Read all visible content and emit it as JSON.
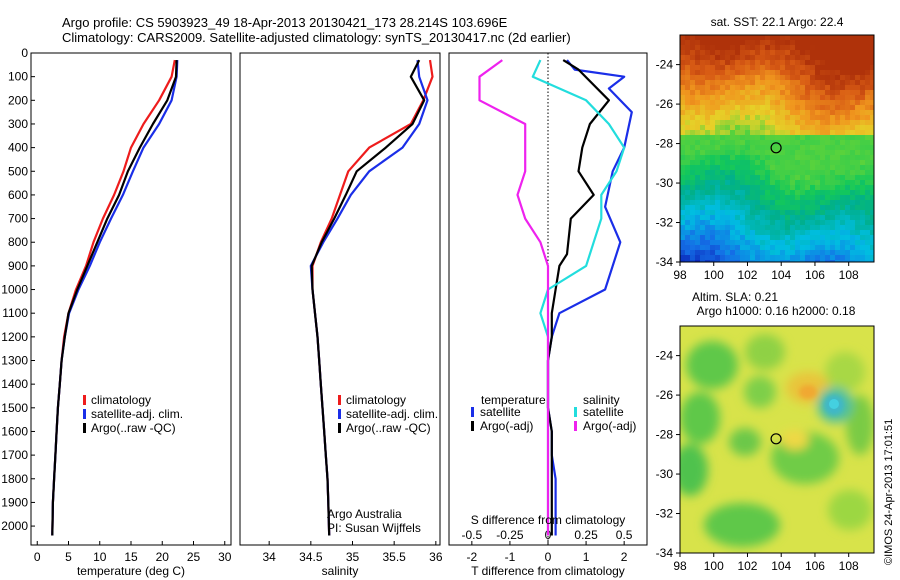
{
  "header": {
    "line1": "Argo profile: CS 5903923_49 18-Apr-2013 20130421_173 28.214S 103.696E",
    "line2": "Climatology: CARS2009. Satellite-adjusted climatology: synTS_20130417.nc (2d earlier)"
  },
  "colors": {
    "climatology": "#ee1c1c",
    "satellite_adj": "#1a2ee8",
    "argo": "#000000",
    "salinity_satellite": "#22dddd",
    "salinity_argo": "#ee22ee"
  },
  "chart_data": [
    {
      "type": "line",
      "panel": "temperature",
      "xlabel": "temperature (deg C)",
      "xlim": [
        -1,
        31
      ],
      "xticks": [
        0,
        5,
        10,
        15,
        20,
        25,
        30
      ],
      "ylim": [
        0,
        2080
      ],
      "yticks": [
        0,
        100,
        200,
        300,
        400,
        500,
        600,
        700,
        800,
        900,
        1000,
        1100,
        1200,
        1300,
        1400,
        1500,
        1600,
        1700,
        1800,
        1900,
        2000
      ],
      "y_inverted": true,
      "legend": [
        "climatology",
        "satellite-adj. clim.",
        "Argo(..raw -QC)"
      ],
      "series": [
        {
          "name": "climatology",
          "color": "#ee1c1c",
          "x": [
            22.0,
            21.5,
            19.5,
            17.0,
            15.0,
            13.8,
            12.3,
            10.5,
            9.0,
            7.8,
            6.2,
            5.0,
            4.3,
            3.9,
            3.6,
            3.3,
            3.1,
            2.9,
            2.7,
            2.5,
            2.4
          ],
          "y": [
            30,
            100,
            200,
            300,
            400,
            500,
            600,
            700,
            800,
            900,
            1000,
            1100,
            1200,
            1300,
            1400,
            1500,
            1600,
            1700,
            1800,
            1900,
            2040
          ]
        },
        {
          "name": "satellite-adj. clim.",
          "color": "#1a2ee8",
          "x": [
            22.4,
            22.3,
            21.5,
            19.5,
            17.0,
            15.3,
            13.7,
            11.8,
            10.0,
            8.4,
            6.6,
            5.1,
            4.4,
            3.9,
            3.6,
            3.3,
            3.1,
            2.9,
            2.7,
            2.5,
            2.4
          ],
          "y": [
            30,
            100,
            200,
            300,
            400,
            500,
            600,
            700,
            800,
            900,
            1000,
            1100,
            1200,
            1300,
            1400,
            1500,
            1600,
            1700,
            1800,
            1900,
            2040
          ]
        },
        {
          "name": "Argo(..raw -QC)",
          "color": "#000000",
          "x": [
            22.3,
            22.2,
            20.8,
            18.5,
            16.4,
            14.5,
            13.1,
            11.2,
            9.6,
            8.0,
            6.4,
            5.0,
            4.4,
            3.9,
            3.6,
            3.3,
            3.1,
            2.9,
            2.7,
            2.5,
            2.4
          ],
          "y": [
            30,
            100,
            200,
            300,
            400,
            500,
            600,
            700,
            800,
            900,
            1000,
            1100,
            1200,
            1300,
            1400,
            1500,
            1600,
            1700,
            1800,
            1900,
            2040
          ]
        }
      ]
    },
    {
      "type": "line",
      "panel": "salinity",
      "xlabel": "salinity",
      "xlim": [
        33.65,
        36.05
      ],
      "xticks": [
        34,
        34.5,
        35,
        35.5,
        36
      ],
      "ylim": [
        0,
        2080
      ],
      "y_inverted": true,
      "legend": [
        "climatology",
        "satellite-adj. clim.",
        "Argo(..raw -QC)"
      ],
      "annotation": [
        "Argo Australia",
        "PI: Susan Wijffels"
      ],
      "series": [
        {
          "name": "climatology",
          "color": "#ee1c1c",
          "x": [
            35.93,
            35.96,
            35.85,
            35.7,
            35.2,
            34.95,
            34.85,
            34.75,
            34.62,
            34.52,
            34.52,
            34.55,
            34.58,
            34.6,
            34.62,
            34.64,
            34.66,
            34.68,
            34.7,
            34.71,
            34.72
          ],
          "y": [
            30,
            100,
            200,
            300,
            400,
            500,
            600,
            700,
            800,
            900,
            1000,
            1100,
            1200,
            1300,
            1400,
            1500,
            1600,
            1700,
            1800,
            1900,
            2040
          ]
        },
        {
          "name": "satellite-adj. clim.",
          "color": "#1a2ee8",
          "x": [
            35.78,
            35.8,
            35.9,
            35.8,
            35.6,
            35.2,
            34.98,
            34.82,
            34.65,
            34.5,
            34.52,
            34.55,
            34.58,
            34.6,
            34.62,
            34.64,
            34.66,
            34.68,
            34.7,
            34.71,
            34.72
          ],
          "y": [
            30,
            100,
            200,
            300,
            400,
            500,
            600,
            700,
            800,
            900,
            1000,
            1100,
            1200,
            1300,
            1400,
            1500,
            1600,
            1700,
            1800,
            1900,
            2040
          ]
        },
        {
          "name": "Argo(..raw -QC)",
          "color": "#000000",
          "x": [
            35.8,
            35.7,
            35.86,
            35.72,
            35.4,
            35.05,
            34.92,
            34.78,
            34.63,
            34.51,
            34.52,
            34.55,
            34.58,
            34.6,
            34.62,
            34.64,
            34.66,
            34.68,
            34.7,
            34.71,
            34.72
          ],
          "y": [
            30,
            100,
            200,
            300,
            400,
            500,
            600,
            700,
            800,
            900,
            1000,
            1100,
            1200,
            1300,
            1400,
            1500,
            1600,
            1700,
            1800,
            1900,
            2040
          ]
        }
      ]
    },
    {
      "type": "line",
      "panel": "difference",
      "xlabel": "T difference from climatology",
      "xlabel_top": "S difference from climatology",
      "xlim": [
        -2.6,
        2.6
      ],
      "xticks": [
        -2,
        -1,
        0,
        1,
        2
      ],
      "xticks_salinity": [
        -0.5,
        -0.25,
        0,
        0.25,
        0.5
      ],
      "ylim": [
        0,
        2080
      ],
      "y_inverted": true,
      "legend_temperature_title": "temperature",
      "legend_salinity_title": "salinity",
      "legend_temperature": [
        "satellite",
        "Argo(-adj)"
      ],
      "legend_salinity": [
        "satellite",
        "Argo(-adj)"
      ],
      "series": [
        {
          "name": "temperature satellite",
          "color": "#1a2ee8",
          "x": [
            0.5,
            0.7,
            2.0,
            1.6,
            2.2,
            2.0,
            1.7,
            1.5,
            1.9,
            1.8,
            1.5,
            0.3,
            0.1,
            0.0,
            0.0,
            0.0,
            0.1,
            0.1,
            0.2,
            0.2,
            0.2
          ],
          "y": [
            30,
            70,
            100,
            150,
            250,
            400,
            500,
            650,
            800,
            850,
            1000,
            1100,
            1200,
            1300,
            1400,
            1500,
            1600,
            1700,
            1800,
            1900,
            2040
          ]
        },
        {
          "name": "temperature Argo(-adj)",
          "color": "#000000",
          "x": [
            0.4,
            0.8,
            1.6,
            1.1,
            0.9,
            0.8,
            1.2,
            0.6,
            0.5,
            0.3,
            0.2,
            0.1,
            0.1,
            0.0,
            0.0,
            0.0,
            0.1,
            0.1,
            0.1,
            0.1,
            0.1
          ],
          "y": [
            30,
            70,
            200,
            300,
            400,
            500,
            600,
            700,
            850,
            900,
            1000,
            1100,
            1200,
            1300,
            1400,
            1500,
            1600,
            1700,
            1800,
            1900,
            2040
          ]
        },
        {
          "name": "salinity satellite",
          "color": "#22dddd",
          "x": [
            -0.05,
            -0.1,
            0.25,
            0.4,
            0.5,
            0.45,
            0.35,
            0.35,
            0.3,
            0.25,
            0.0,
            -0.05,
            0.0,
            0.0,
            0.0,
            0.0,
            0.0,
            0.0,
            0.0,
            0.0,
            0.0
          ],
          "y": [
            30,
            100,
            200,
            300,
            400,
            500,
            600,
            700,
            800,
            900,
            1000,
            1100,
            1200,
            1300,
            1400,
            1500,
            1600,
            1700,
            1800,
            1900,
            2040
          ]
        },
        {
          "name": "salinity Argo(-adj)",
          "color": "#ee22ee",
          "x": [
            -0.3,
            -0.45,
            -0.45,
            -0.15,
            -0.15,
            -0.15,
            -0.2,
            -0.15,
            -0.05,
            0.0,
            0.0,
            0.0,
            0.0,
            0.0,
            0.0,
            0.0,
            0.0,
            0.0,
            0.0,
            0.0,
            0.0
          ],
          "y": [
            30,
            100,
            200,
            300,
            400,
            500,
            600,
            700,
            800,
            900,
            1000,
            1100,
            1200,
            1300,
            1400,
            1500,
            1600,
            1700,
            1800,
            1900,
            2040
          ]
        }
      ]
    },
    {
      "type": "heatmap",
      "panel": "sst_map",
      "title": "sat. SST: 22.1  Argo: 22.4",
      "xlim": [
        98,
        109.5
      ],
      "ylim": [
        -34,
        -22.5
      ],
      "xticks": [
        98,
        100,
        102,
        104,
        106,
        108
      ],
      "yticks": [
        -24,
        -26,
        -28,
        -30,
        -32,
        -34
      ],
      "marker": {
        "lon": 103.696,
        "lat": -28.214
      },
      "description": "sea surface temperature field: warm (red/orange) in north, cool (blue) in south"
    },
    {
      "type": "heatmap",
      "panel": "sla_map",
      "title": "Altim. SLA: 0.21",
      "subtitle": "Argo h1000: 0.16  h2000: 0.18",
      "xlim": [
        98,
        109.5
      ],
      "ylim": [
        -34,
        -22.5
      ],
      "xticks": [
        98,
        100,
        102,
        104,
        106,
        108
      ],
      "yticks": [
        -24,
        -26,
        -28,
        -30,
        -32,
        -34
      ],
      "marker": {
        "lon": 103.696,
        "lat": -28.214
      },
      "watermark": "©IMOS 24-Apr-2013 17:01:51"
    }
  ]
}
